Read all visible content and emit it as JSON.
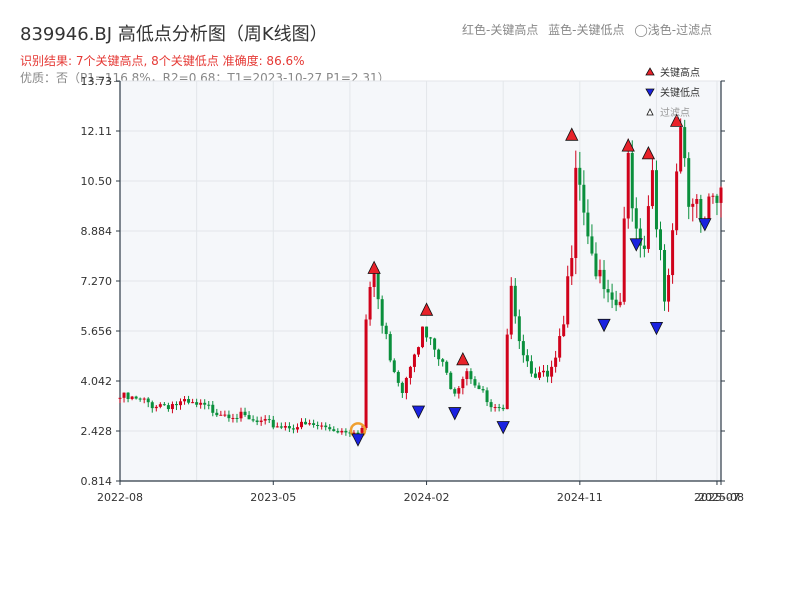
{
  "header": {
    "title": "839946.BJ 高低点分析图（周K线图）",
    "result_line": "识别结果: 7个关键高点, 8个关键低点   准确度: 86.6%",
    "detail_line": "优质：否（P1=116.8%，R2=0.68；T1=2023-10-27 P1=2.31）",
    "top_legend": [
      "红色-关键高点",
      "蓝色-关键低点",
      "◯浅色-过滤点"
    ]
  },
  "colors": {
    "up": "#d0021b",
    "down": "#0a8f3c",
    "high_marker": "#e8222a",
    "low_marker": "#1a22e0",
    "filtered_marker": "#f0a030",
    "plot_bg": "#f5f7fa",
    "grid": "#e3e6ea",
    "axis": "#2d3a46"
  },
  "chart_data": {
    "type": "candlestick",
    "ytick_labels": [
      "0.814",
      "2.428",
      "4.042",
      "5.656",
      "7.270",
      "8.884",
      "10.50",
      "12.11",
      "13.73"
    ],
    "ylim": [
      0.814,
      13.73
    ],
    "xtick_labels": [
      "2022-08",
      "2023-05",
      "2024-02",
      "2024-11",
      "2025-07",
      "2025-08"
    ],
    "xlim": [
      0,
      149
    ],
    "xtick_positions": [
      0,
      38,
      76,
      114,
      148,
      149
    ],
    "grid": true,
    "legend_position": "top-right",
    "legend": [
      {
        "label": "关键高点",
        "marker": "high"
      },
      {
        "label": "关键低点",
        "marker": "low"
      },
      {
        "label": "过滤点",
        "marker": "filtered"
      }
    ],
    "anchors": [
      [
        0,
        3.5
      ],
      [
        8,
        3.3
      ],
      [
        15,
        3.3
      ],
      [
        22,
        3.15
      ],
      [
        28,
        3.0
      ],
      [
        33,
        2.7
      ],
      [
        40,
        2.6
      ],
      [
        48,
        2.6
      ],
      [
        55,
        2.45
      ],
      [
        60,
        2.5
      ],
      [
        61,
        6.0
      ],
      [
        63,
        7.5
      ],
      [
        65,
        5.8
      ],
      [
        68,
        4.5
      ],
      [
        70,
        3.8
      ],
      [
        73,
        5.2
      ],
      [
        75,
        5.6
      ],
      [
        78,
        5.0
      ],
      [
        81,
        4.2
      ],
      [
        83,
        3.8
      ],
      [
        86,
        4.5
      ],
      [
        89,
        3.8
      ],
      [
        92,
        3.1
      ],
      [
        95,
        3.0
      ],
      [
        97,
        7.5
      ],
      [
        99,
        5.5
      ],
      [
        101,
        4.7
      ],
      [
        104,
        4.2
      ],
      [
        106,
        4.1
      ],
      [
        108,
        4.6
      ],
      [
        110,
        5.8
      ],
      [
        112,
        8.5
      ],
      [
        113,
        11.6
      ],
      [
        115,
        9.8
      ],
      [
        117,
        8.2
      ],
      [
        119,
        7.2
      ],
      [
        122,
        6.3
      ],
      [
        124,
        6.6
      ],
      [
        126,
        11.2
      ],
      [
        128,
        9.0
      ],
      [
        130,
        8.6
      ],
      [
        132,
        11.0
      ],
      [
        134,
        8.0
      ],
      [
        135,
        6.3
      ],
      [
        137,
        8.5
      ],
      [
        139,
        12.1
      ],
      [
        141,
        9.8
      ],
      [
        143,
        10.0
      ],
      [
        145,
        9.4
      ],
      [
        146,
        10.1
      ],
      [
        149,
        10.0
      ]
    ],
    "key_highs": [
      [
        63,
        7.45
      ],
      [
        76,
        6.1
      ],
      [
        85,
        4.5
      ],
      [
        112,
        11.75
      ],
      [
        126,
        11.4
      ],
      [
        131,
        11.15
      ],
      [
        138,
        12.2
      ]
    ],
    "key_lows": [
      [
        59,
        2.4
      ],
      [
        74,
        3.3
      ],
      [
        83,
        3.25
      ],
      [
        95,
        2.8
      ],
      [
        120,
        6.1
      ],
      [
        128,
        8.7
      ],
      [
        133,
        6.0
      ],
      [
        145,
        9.35
      ]
    ],
    "filtered_points": [
      [
        59,
        2.45
      ]
    ]
  }
}
